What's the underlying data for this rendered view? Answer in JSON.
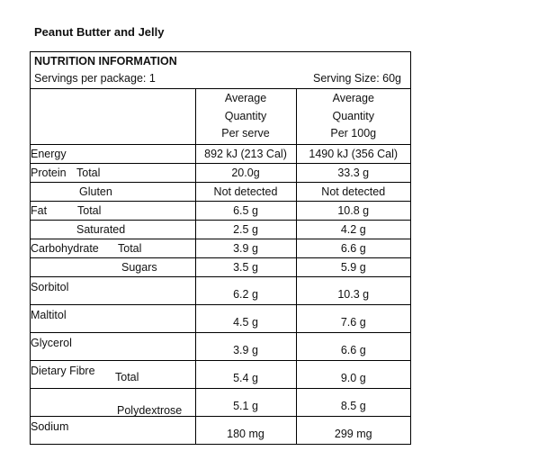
{
  "product_title": "Peanut Butter and Jelly",
  "panel": {
    "heading": "NUTRITION INFORMATION",
    "servings_per_package": "Servings per package: 1",
    "serving_size": "Serving Size: 60g",
    "col_serve_lines": [
      "Average",
      "Quantity",
      "Per serve"
    ],
    "col_100g_lines": [
      "Average",
      "Quantity",
      "Per 100g"
    ]
  },
  "rows": {
    "energy": {
      "label": "Energy",
      "serve": "892 kJ (213 Cal)",
      "per100": "1490 kJ (356 Cal)"
    },
    "protein": {
      "label": "Protein",
      "sub": "Total",
      "serve": "20.0g",
      "per100": "33.3 g"
    },
    "gluten": {
      "sub": "Gluten",
      "serve": "Not detected",
      "per100": "Not detected"
    },
    "fat": {
      "label": "Fat",
      "sub": "Total",
      "serve": "6.5 g",
      "per100": "10.8 g"
    },
    "saturated": {
      "sub": "Saturated",
      "serve": "2.5 g",
      "per100": "4.2 g"
    },
    "carb": {
      "label": "Carbohydrate",
      "sub": "Total",
      "serve": "3.9 g",
      "per100": "6.6 g"
    },
    "sugars": {
      "sub": "Sugars",
      "serve": "3.5 g",
      "per100": "5.9 g"
    },
    "sorbitol": {
      "label": "Sorbitol",
      "serve": "6.2 g",
      "per100": "10.3 g"
    },
    "maltitol": {
      "label": "Maltitol",
      "serve": "4.5 g",
      "per100": "7.6 g"
    },
    "glycerol": {
      "label": "Glycerol",
      "serve": "3.9 g",
      "per100": "6.6 g"
    },
    "fibre": {
      "label": "Dietary Fibre",
      "sub": "Total",
      "serve": "5.4 g",
      "per100": "9.0 g"
    },
    "polydextrose": {
      "sub": "Polydextrose",
      "serve": "5.1 g",
      "per100": "8.5 g"
    },
    "sodium": {
      "label": "Sodium",
      "serve": "180 mg",
      "per100": "299 mg"
    }
  }
}
